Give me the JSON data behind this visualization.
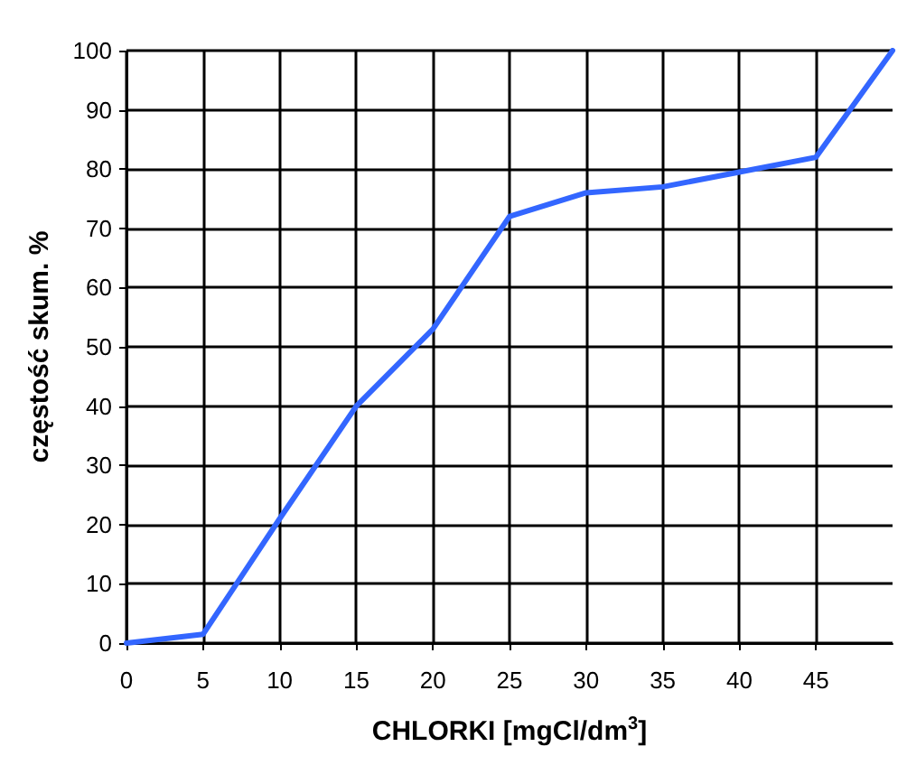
{
  "chart_data": {
    "type": "line",
    "xlabel": "CHLORKI [mgCl/dm$^{3}$]",
    "ylabel": "częstość skum. %",
    "x": [
      0,
      5,
      10,
      15,
      20,
      25,
      30,
      35,
      40,
      45,
      50
    ],
    "series": [
      {
        "color": "#3366ff",
        "values": [
          0,
          1.5,
          21,
          40,
          53,
          72,
          76,
          77,
          79.5,
          82,
          100
        ]
      }
    ],
    "xlim": [
      0,
      50
    ],
    "xticks": [
      0,
      5,
      10,
      15,
      20,
      25,
      30,
      35,
      40,
      45
    ],
    "ylim": [
      0,
      100
    ],
    "yticks": [
      0,
      10,
      20,
      30,
      40,
      50,
      60,
      70,
      80,
      90,
      100
    ],
    "grid": true,
    "marker": "none",
    "line_style": "solid"
  }
}
